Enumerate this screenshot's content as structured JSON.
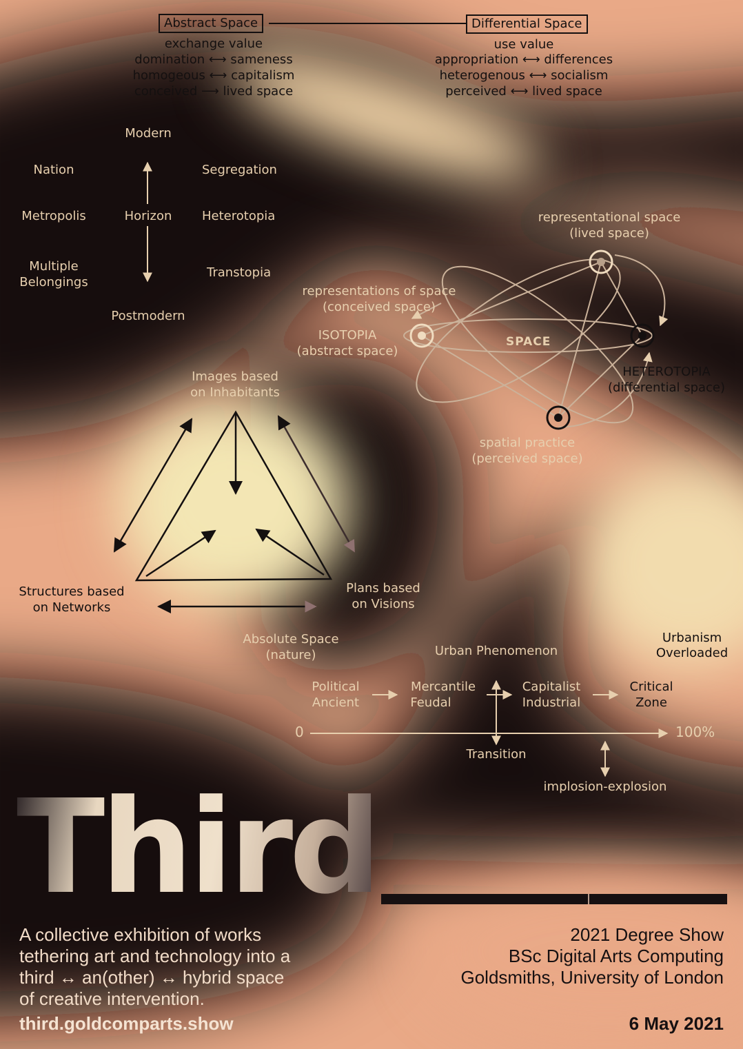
{
  "colors": {
    "background": "#e9a987",
    "dark": "#141010",
    "cream": "#f2e0b0",
    "light_text": "#e7cfae"
  },
  "top": {
    "abstract": {
      "title": "Abstract Space",
      "lines": [
        "exchange value",
        "domination ⟷ sameness",
        "homogeous ⟷ capitalism",
        "conceived ⟶ lived space"
      ]
    },
    "differential": {
      "title": "Differential Space",
      "lines": [
        "use value",
        "appropriation ⟷ differences",
        "heterogenous ⟷ socialism",
        "perceived ⟷ lived space"
      ]
    }
  },
  "horizon": {
    "modern": "Modern",
    "center": "Horizon",
    "postmodern": "Postmodern",
    "left": [
      "Nation",
      "Metropolis",
      "Multiple",
      "Belongings"
    ],
    "right": [
      "Segregation",
      "Heterotopia",
      "Transtopia"
    ]
  },
  "space_diagram": {
    "center": "SPACE",
    "representational": [
      "representational space",
      "(lived space)"
    ],
    "representations": [
      "representations of space",
      "(conceived space)"
    ],
    "isotopia": [
      "ISOTOPIA",
      "(abstract space)"
    ],
    "heterotopia": [
      "HETEROTOPIA",
      "(differential space)"
    ],
    "spatial_practice": [
      "spatial practice",
      "(perceived space)"
    ]
  },
  "triangle": {
    "top": [
      "Images based",
      "on Inhabitants"
    ],
    "left": [
      "Structures based",
      "on Networks"
    ],
    "right": [
      "Plans based",
      "on Visions"
    ]
  },
  "timeline": {
    "absolute": [
      "Absolute Space",
      "(nature)"
    ],
    "urban_phenomenon": "Urban Phenomenon",
    "urbanism": [
      "Urbanism",
      "Overloaded"
    ],
    "stages": [
      [
        "Political",
        "Ancient"
      ],
      [
        "Mercantile",
        "Feudal"
      ],
      [
        "Capitalist",
        "Industrial"
      ],
      [
        "Critical",
        "Zone"
      ]
    ],
    "start": "0",
    "end": "100%",
    "transition": "Transition",
    "implosion": "implosion-explosion"
  },
  "title": "Third",
  "description": [
    "A collective exhibition of works",
    "tethering art and technology into a",
    "third ↔ an(other) ↔ hybrid space",
    "of creative intervention."
  ],
  "url": "third.goldcomparts.show",
  "info": [
    "2021 Degree Show",
    "BSc Digital Arts Computing",
    "Goldsmiths, University of London"
  ],
  "date": "6 May 2021"
}
